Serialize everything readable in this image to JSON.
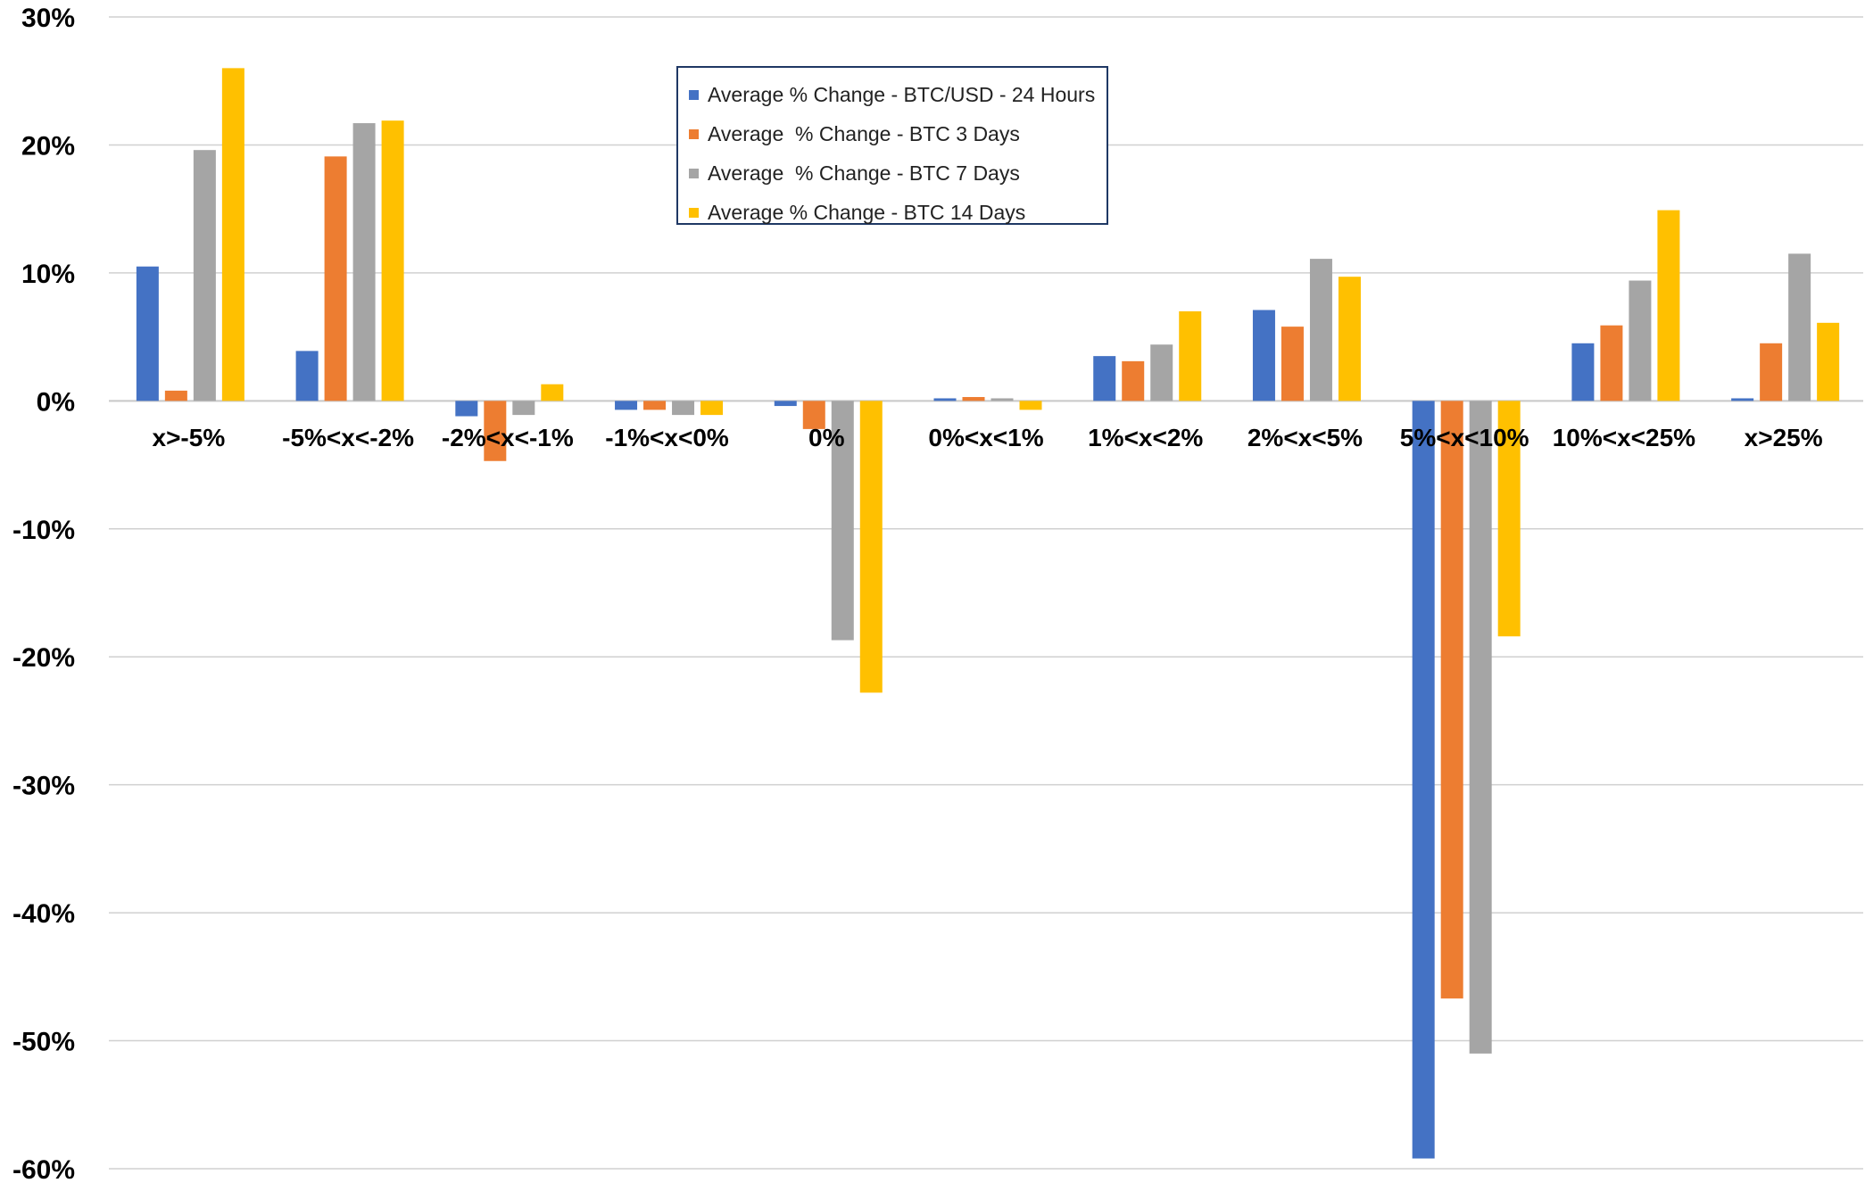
{
  "chart_data": {
    "type": "bar",
    "title": "",
    "xlabel": "",
    "ylabel": "",
    "ylim": [
      -60,
      30
    ],
    "y_ticks": [
      "30%",
      "20%",
      "10%",
      "0%",
      "-10%",
      "-20%",
      "-30%",
      "-40%",
      "-50%",
      "-60%"
    ],
    "y_tick_values": [
      30,
      20,
      10,
      0,
      -10,
      -20,
      -30,
      -40,
      -50,
      -60
    ],
    "grid": true,
    "legend_position": "top-center",
    "categories": [
      "x>-5%",
      "-5%<x<-2%",
      "-2%<x<-1%",
      "-1%<x<0%",
      "0%",
      "0%<x<1%",
      "1%<x<2%",
      "2%<x<5%",
      "5%<x<10%",
      "10%<x<25%",
      "x>25%"
    ],
    "series": [
      {
        "name": "Average % Change - BTC/USD - 24 Hours",
        "color": "#4472c4",
        "values": [
          10.5,
          3.9,
          -1.2,
          -0.7,
          -0.4,
          0.2,
          3.5,
          7.1,
          -59.2,
          4.5,
          0.2
        ]
      },
      {
        "name": "Average  % Change - BTC 3 Days",
        "color": "#ed7d31",
        "values": [
          0.8,
          19.1,
          -4.7,
          -0.7,
          -2.2,
          0.3,
          3.1,
          5.8,
          -46.7,
          5.9,
          4.5
        ]
      },
      {
        "name": "Average  % Change - BTC 7 Days",
        "color": "#a5a5a5",
        "values": [
          19.6,
          21.7,
          -1.1,
          -1.1,
          -18.7,
          0.2,
          4.4,
          11.1,
          -51.0,
          9.4,
          11.5
        ]
      },
      {
        "name": "Average % Change - BTC 14 Days",
        "color": "#ffc000",
        "values": [
          26.0,
          21.9,
          1.3,
          -1.1,
          -22.8,
          -0.7,
          7.0,
          9.7,
          -18.4,
          14.9,
          6.1
        ]
      }
    ]
  }
}
